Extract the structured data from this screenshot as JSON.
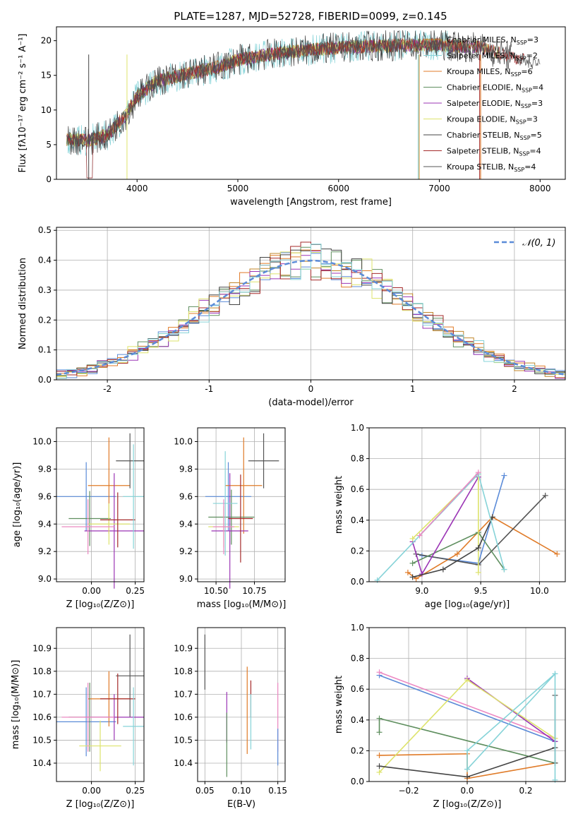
{
  "colors": [
    "#5b8bd8",
    "#e07b28",
    "#555555",
    "#c0862a",
    "#5f8f5f",
    "#9b35b5",
    "#dde36c",
    "#444444",
    "#a52a2a",
    "#86d3d8",
    "#ec88c2"
  ],
  "chart_data": [
    {
      "id": "spectrum",
      "type": "line",
      "title": "PLATE=1287, MJD=52728, FIBERID=0099, z=0.145",
      "xlabel": "wavelength [Angstrom, rest frame]",
      "ylabel": "Flux [fλ10⁻¹⁷ erg cm⁻² s⁻¹ A⁻¹]",
      "xlim": [
        3200,
        8250
      ],
      "ylim": [
        0,
        22
      ],
      "xticks": [
        4000,
        5000,
        6000,
        7000,
        8000
      ],
      "yticks": [
        0,
        5,
        10,
        15,
        20
      ],
      "grid": false,
      "legend": "upper right",
      "continuum_x": [
        3300,
        3500,
        3700,
        3900,
        4000,
        4200,
        4500,
        4800,
        5000,
        5300,
        5600,
        6000,
        6500,
        7000,
        7400,
        7700,
        7900,
        8000
      ],
      "continuum_y": [
        5.8,
        5.6,
        6.3,
        9.5,
        12.0,
        14.2,
        15.2,
        16.2,
        17.2,
        18.0,
        18.5,
        19.0,
        19.3,
        19.4,
        19.0,
        17.8,
        17.0,
        16.5
      ],
      "series": [
        {
          "name": "Chabrier MILES, N_SSP=3"
        },
        {
          "name": "Salpeter MILES, N_SSP=2"
        },
        {
          "name": "Kroupa MILES, N_SSP=6"
        },
        {
          "name": "Chabrier ELODIE, N_SSP=4"
        },
        {
          "name": "Salpeter ELODIE, N_SSP=3"
        },
        {
          "name": "Kroupa ELODIE, N_SSP=3"
        },
        {
          "name": "Chabrier STELIB, N_SSP=5"
        },
        {
          "name": "Salpeter STELIB, N_SSP=4"
        },
        {
          "name": "Kroupa STELIB, N_SSP=4"
        }
      ]
    },
    {
      "id": "residuals",
      "type": "line",
      "xlabel": "(data-model)/error",
      "ylabel": "Normed distribution",
      "xlim": [
        -2.5,
        2.5
      ],
      "ylim": [
        0,
        0.51
      ],
      "xticks": [
        -2,
        -1,
        0,
        1,
        2
      ],
      "yticks": [
        0.0,
        0.1,
        0.2,
        0.3,
        0.4,
        0.5
      ],
      "grid": true,
      "legend": "upper right",
      "normal_label": "𝒩(0, 1)",
      "bin_width": 0.1
    },
    {
      "id": "age_vs_Z",
      "type": "scatter",
      "xlabel": "Z [log₁₀(Z/Z⊙)]",
      "ylabel": "age  [log₁₀(age/yr)]",
      "xlim": [
        -0.2,
        0.3
      ],
      "ylim": [
        8.98,
        10.1
      ],
      "xticks": [
        "0.00",
        "0.25"
      ],
      "yticks": [
        "9.0",
        "9.2",
        "9.4",
        "9.6",
        "9.8",
        "10.0"
      ],
      "grid": true,
      "points": [
        {
          "x": -0.03,
          "y": 9.6,
          "ex": 0.17,
          "ey": 0.25,
          "c": 0
        },
        {
          "x": 0.1,
          "y": 9.68,
          "ex": 0.12,
          "ey": 0.35,
          "c": 1
        },
        {
          "x": 0.22,
          "y": 9.86,
          "ex": 0.08,
          "ey": 0.2,
          "c": 2
        },
        {
          "x": -0.01,
          "y": 9.44,
          "ex": 0.12,
          "ey": 0.2,
          "c": 4
        },
        {
          "x": 0.13,
          "y": 9.35,
          "ex": 0.17,
          "ey": 0.42,
          "c": 5
        },
        {
          "x": 0.1,
          "y": 9.4,
          "ex": 0.12,
          "ey": 0.15,
          "c": 6
        },
        {
          "x": 0.15,
          "y": 9.43,
          "ex": 0.1,
          "ey": 0.2,
          "c": 8
        },
        {
          "x": 0.24,
          "y": 9.6,
          "ex": 0.06,
          "ey": 0.38,
          "c": 9
        },
        {
          "x": -0.02,
          "y": 9.38,
          "ex": 0.15,
          "ey": 0.2,
          "c": 10
        }
      ]
    },
    {
      "id": "age_vs_mass",
      "type": "scatter",
      "xlabel": "mass [log₁₀(M/M⊙)]",
      "xlim": [
        10.38,
        10.95
      ],
      "ylim": [
        8.98,
        10.1
      ],
      "xticks": [
        "10.50",
        "10.75"
      ],
      "yticks": [
        "9.0",
        "9.2",
        "9.4",
        "9.6",
        "9.8",
        "10.0"
      ],
      "grid": true,
      "points": [
        {
          "x": 10.58,
          "y": 9.6,
          "ex": 0.15,
          "ey": 0.25,
          "c": 0
        },
        {
          "x": 10.68,
          "y": 9.68,
          "ex": 0.12,
          "ey": 0.35,
          "c": 1
        },
        {
          "x": 10.81,
          "y": 9.86,
          "ex": 0.1,
          "ey": 0.2,
          "c": 2
        },
        {
          "x": 10.6,
          "y": 9.45,
          "ex": 0.15,
          "ey": 0.2,
          "c": 4
        },
        {
          "x": 10.59,
          "y": 9.35,
          "ex": 0.12,
          "ey": 0.42,
          "c": 5
        },
        {
          "x": 10.55,
          "y": 9.38,
          "ex": 0.1,
          "ey": 0.15,
          "c": 6
        },
        {
          "x": 10.66,
          "y": 9.44,
          "ex": 0.08,
          "ey": 0.32,
          "c": 8
        },
        {
          "x": 10.56,
          "y": 9.55,
          "ex": 0.08,
          "ey": 0.38,
          "c": 9
        },
        {
          "x": 10.55,
          "y": 9.38,
          "ex": 0.07,
          "ey": 0.2,
          "c": 10
        }
      ]
    },
    {
      "id": "weight_vs_age",
      "type": "line",
      "xlabel": "age  [log₁₀(age/yr)]",
      "ylabel": "mass weight",
      "xlim": [
        8.55,
        10.22
      ],
      "ylim": [
        0,
        1.0
      ],
      "xticks": [
        "9.0",
        "9.5",
        "10.0"
      ],
      "yticks": [
        "0.0",
        "0.2",
        "0.4",
        "0.6",
        "0.8",
        "1.0"
      ],
      "grid": true,
      "series": [
        {
          "c": 0,
          "x": [
            9.0,
            9.48,
            9.7
          ],
          "y": [
            0.17,
            0.12,
            0.69
          ]
        },
        {
          "c": 1,
          "x": [
            8.88,
            8.95,
            9.3,
            9.6,
            10.15
          ],
          "y": [
            0.06,
            0.02,
            0.18,
            0.42,
            0.18
          ]
        },
        {
          "c": 2,
          "x": [
            8.95,
            9.48,
            10.05
          ],
          "y": [
            0.18,
            0.11,
            0.56
          ]
        },
        {
          "c": 4,
          "x": [
            8.92,
            9.48,
            9.7
          ],
          "y": [
            0.12,
            0.32,
            0.08
          ]
        },
        {
          "c": 5,
          "x": [
            8.92,
            9.0,
            9.48
          ],
          "y": [
            0.26,
            0.05,
            0.68
          ]
        },
        {
          "c": 6,
          "x": [
            8.92,
            9.48,
            9.48
          ],
          "y": [
            0.28,
            0.7,
            0.06
          ]
        },
        {
          "c": 7,
          "x": [
            8.92,
            9.18,
            9.48,
            9.6
          ],
          "y": [
            0.03,
            0.08,
            0.22,
            0.42
          ]
        },
        {
          "c": 9,
          "x": [
            8.62,
            9.48,
            9.7
          ],
          "y": [
            0.01,
            0.7,
            0.08
          ]
        },
        {
          "c": 10,
          "x": [
            8.98,
            9.48
          ],
          "y": [
            0.3,
            0.71
          ]
        }
      ]
    },
    {
      "id": "mass_vs_Z",
      "type": "scatter",
      "xlabel": "Z [log₁₀(Z/Z⊙)]",
      "ylabel": "mass [log₁₀(M/M⊙)]",
      "xlim": [
        -0.2,
        0.3
      ],
      "ylim": [
        10.32,
        10.99
      ],
      "xticks": [
        "0.00",
        "0.25"
      ],
      "yticks": [
        "10.4",
        "10.5",
        "10.6",
        "10.7",
        "10.8",
        "10.9"
      ],
      "grid": true,
      "points": [
        {
          "x": -0.03,
          "y": 10.58,
          "ex": 0.17,
          "ey": 0.15,
          "c": 0
        },
        {
          "x": 0.1,
          "y": 10.68,
          "ex": 0.12,
          "ey": 0.12,
          "c": 1
        },
        {
          "x": 0.22,
          "y": 10.78,
          "ex": 0.08,
          "ey": 0.18,
          "c": 2
        },
        {
          "x": -0.01,
          "y": 10.6,
          "ex": 0.12,
          "ey": 0.15,
          "c": 4
        },
        {
          "x": 0.13,
          "y": 10.6,
          "ex": 0.17,
          "ey": 0.1,
          "c": 5
        },
        {
          "x": 0.05,
          "y": 10.475,
          "ex": 0.12,
          "ey": 0.11,
          "c": 6
        },
        {
          "x": 0.15,
          "y": 10.68,
          "ex": 0.1,
          "ey": 0.11,
          "c": 8
        },
        {
          "x": 0.24,
          "y": 10.56,
          "ex": 0.06,
          "ey": 0.17,
          "c": 9
        },
        {
          "x": -0.02,
          "y": 10.6,
          "ex": 0.15,
          "ey": 0.15,
          "c": 10
        }
      ]
    },
    {
      "id": "mass_vs_ebv",
      "type": "scatter",
      "xlabel": "E(B-V)",
      "xlim": [
        0.04,
        0.16
      ],
      "ylim": [
        10.32,
        10.99
      ],
      "xticks": [
        "0.05",
        "0.10",
        "0.15"
      ],
      "yticks": [
        "10.4",
        "10.5",
        "10.6",
        "10.7",
        "10.8",
        "10.9"
      ],
      "grid": true,
      "points": [
        {
          "x": 0.05,
          "y": 10.84,
          "ex": 0,
          "ey": 0.12,
          "c": 2
        },
        {
          "x": 0.08,
          "y": 10.6,
          "ex": 0,
          "ey": 0.11,
          "c": 5
        },
        {
          "x": 0.08,
          "y": 10.48,
          "ex": 0,
          "ey": 0.14,
          "c": 4
        },
        {
          "x": 0.108,
          "y": 10.63,
          "ex": 0,
          "ey": 0.19,
          "c": 1
        },
        {
          "x": 0.113,
          "y": 10.68,
          "ex": 0,
          "ey": 0.08,
          "c": 8
        },
        {
          "x": 0.113,
          "y": 10.58,
          "ex": 0,
          "ey": 0.12,
          "c": 9
        },
        {
          "x": 0.15,
          "y": 10.6,
          "ex": 0,
          "ey": 0.15,
          "c": 10
        },
        {
          "x": 0.15,
          "y": 10.47,
          "ex": 0,
          "ey": 0.08,
          "c": 0
        }
      ]
    },
    {
      "id": "weight_vs_Z",
      "type": "line",
      "xlabel": "Z [log₁₀(Z/Z⊙)]",
      "ylabel": "mass weight",
      "xlim": [
        -0.335,
        0.335
      ],
      "ylim": [
        0,
        1.0
      ],
      "xticks": [
        "−0.2",
        "0.0",
        "0.2"
      ],
      "yticks": [
        "0.0",
        "0.2",
        "0.4",
        "0.6",
        "0.8",
        "1.0"
      ],
      "grid": true,
      "series": [
        {
          "c": 0,
          "x": [
            -0.3,
            0.3
          ],
          "y": [
            0.69,
            0.26
          ]
        },
        {
          "c": 10,
          "x": [
            -0.3,
            0.3
          ],
          "y": [
            0.71,
            0.28
          ]
        },
        {
          "c": 1,
          "x": [
            -0.3,
            0.0,
            0.0,
            0.3
          ],
          "y": [
            0.17,
            0.18,
            0.02,
            0.12
          ]
        },
        {
          "c": 4,
          "x": [
            -0.3,
            -0.3,
            0.3
          ],
          "y": [
            0.32,
            0.41,
            0.12
          ]
        },
        {
          "c": 5,
          "x": [
            0.0,
            0.3
          ],
          "y": [
            0.67,
            0.26
          ]
        },
        {
          "c": 6,
          "x": [
            -0.3,
            0.0,
            0.3
          ],
          "y": [
            0.06,
            0.66,
            0.28
          ]
        },
        {
          "c": 7,
          "x": [
            -0.3,
            0.0,
            0.3
          ],
          "y": [
            0.1,
            0.03,
            0.22
          ]
        },
        {
          "c": 2,
          "x": [
            0.3,
            0.3
          ],
          "y": [
            0.56,
            0.12
          ]
        },
        {
          "c": 9,
          "x": [
            0.0,
            0.0,
            0.3,
            0.3
          ],
          "y": [
            0.08,
            0.2,
            0.7,
            0.01
          ]
        },
        {
          "c": 9,
          "x": [
            0.0,
            0.3
          ],
          "y": [
            0.08,
            0.7
          ]
        }
      ]
    }
  ]
}
